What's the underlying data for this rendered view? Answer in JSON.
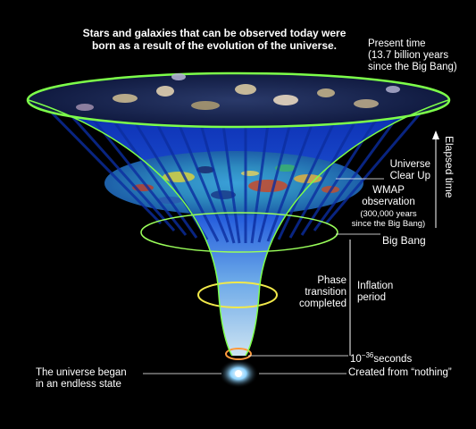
{
  "headline": "Stars and galaxies that can be observed today were born as a result of the evolution of the universe.",
  "present_time": {
    "line1": "Present time",
    "line2": "(13.7 billion years",
    "line3": "since the Big Bang)"
  },
  "elapsed_time": "Elapsed time",
  "universe_clear_up": {
    "line1": "Universe",
    "line2": "Clear Up"
  },
  "wmap": {
    "line1": "WMAP",
    "line2": "observation",
    "line3": "(300,000 years",
    "line4": "since the Big Bang)"
  },
  "big_bang": "Big Bang",
  "phase_transition": {
    "line1": "Phase",
    "line2": "transition",
    "line3": "completed"
  },
  "inflation": {
    "line1": "Inflation",
    "line2": "period"
  },
  "seconds": {
    "base": "10",
    "exponent": "−36",
    "unit": "seconds"
  },
  "created_from_nothing": "Created from “nothing”",
  "universe_began": {
    "line1": "The universe began",
    "line2": "in an endless state"
  },
  "colors": {
    "background": "#000000",
    "funnel_blue": "#1a4bd8",
    "rim_green": "#7dff4a",
    "ring_yellow": "#f2e94a",
    "ring_orange": "#ff9a3c"
  }
}
